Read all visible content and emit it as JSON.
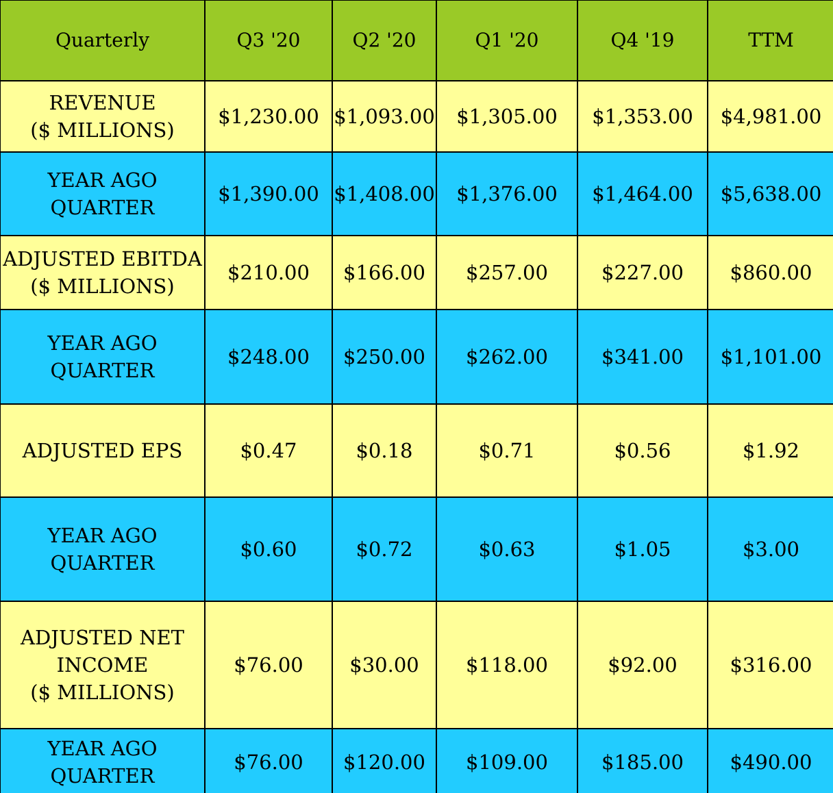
{
  "colors": {
    "header": "#9ACA27",
    "yellow": "#FFFF99",
    "blue": "#22CCFF"
  },
  "chart_data": {
    "type": "table",
    "columns": [
      "Quarterly",
      "Q3 '20",
      "Q2 '20",
      "Q1 '20",
      "Q4 '19",
      "TTM"
    ],
    "rows": [
      {
        "label": [
          "REVENUE",
          "($ MILLIONS)"
        ],
        "values": [
          "$1,230.00",
          "$1,093.00",
          "$1,305.00",
          "$1,353.00",
          "$4,981.00"
        ],
        "color": "yellow"
      },
      {
        "label": [
          "YEAR AGO QUARTER"
        ],
        "values": [
          "$1,390.00",
          "$1,408.00",
          "$1,376.00",
          "$1,464.00",
          "$5,638.00"
        ],
        "color": "blue"
      },
      {
        "label": [
          "ADJUSTED EBITDA",
          "($ MILLIONS)"
        ],
        "values": [
          "$210.00",
          "$166.00",
          "$257.00",
          "$227.00",
          "$860.00"
        ],
        "color": "yellow"
      },
      {
        "label": [
          "YEAR AGO QUARTER"
        ],
        "values": [
          "$248.00",
          "$250.00",
          "$262.00",
          "$341.00",
          "$1,101.00"
        ],
        "color": "blue"
      },
      {
        "label": [
          "ADJUSTED EPS"
        ],
        "values": [
          "$0.47",
          "$0.18",
          "$0.71",
          "$0.56",
          "$1.92"
        ],
        "color": "yellow"
      },
      {
        "label": [
          "YEAR AGO QUARTER"
        ],
        "values": [
          "$0.60",
          "$0.72",
          "$0.63",
          "$1.05",
          "$3.00"
        ],
        "color": "blue"
      },
      {
        "label": [
          "ADJUSTED NET",
          "INCOME",
          "($ MILLIONS)"
        ],
        "values": [
          "$76.00",
          "$30.00",
          "$118.00",
          "$92.00",
          "$316.00"
        ],
        "color": "yellow"
      },
      {
        "label": [
          "YEAR AGO QUARTER"
        ],
        "values": [
          "$76.00",
          "$120.00",
          "$109.00",
          "$185.00",
          "$490.00"
        ],
        "color": "blue"
      }
    ]
  }
}
